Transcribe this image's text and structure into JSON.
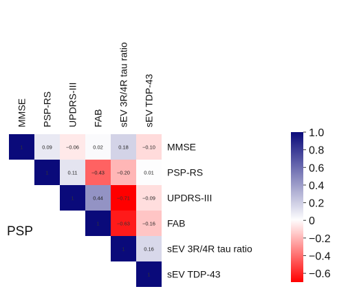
{
  "chart_data": {
    "type": "heatmap",
    "title": "",
    "panel_label": "PSP",
    "variables": [
      "MMSE",
      "PSP-RS",
      "UPDRS-III",
      "FAB",
      "sEV 3R/4R tau ratio",
      "sEV TDP-43"
    ],
    "layout": "upper-triangle",
    "cells": [
      {
        "row": 0,
        "col": 0,
        "value": 1,
        "label": "1"
      },
      {
        "row": 0,
        "col": 1,
        "value": 0.09,
        "label": "0.09"
      },
      {
        "row": 0,
        "col": 2,
        "value": -0.06,
        "label": "−0.06"
      },
      {
        "row": 0,
        "col": 3,
        "value": 0.02,
        "label": "0.02"
      },
      {
        "row": 0,
        "col": 4,
        "value": 0.18,
        "label": "0.18"
      },
      {
        "row": 0,
        "col": 5,
        "value": -0.1,
        "label": "−0.10"
      },
      {
        "row": 1,
        "col": 1,
        "value": 1,
        "label": "1"
      },
      {
        "row": 1,
        "col": 2,
        "value": 0.11,
        "label": "0.11"
      },
      {
        "row": 1,
        "col": 3,
        "value": -0.43,
        "label": "−0.43"
      },
      {
        "row": 1,
        "col": 4,
        "value": -0.2,
        "label": "−0.20"
      },
      {
        "row": 1,
        "col": 5,
        "value": 0.01,
        "label": "0.01"
      },
      {
        "row": 2,
        "col": 2,
        "value": 1,
        "label": "1"
      },
      {
        "row": 2,
        "col": 3,
        "value": 0.44,
        "label": "0.44"
      },
      {
        "row": 2,
        "col": 4,
        "value": -0.71,
        "label": "−0.71"
      },
      {
        "row": 2,
        "col": 5,
        "value": -0.09,
        "label": "−0.09"
      },
      {
        "row": 3,
        "col": 3,
        "value": 1,
        "label": "1"
      },
      {
        "row": 3,
        "col": 4,
        "value": -0.63,
        "label": "−0.63"
      },
      {
        "row": 3,
        "col": 5,
        "value": -0.16,
        "label": "−0.16"
      },
      {
        "row": 4,
        "col": 4,
        "value": 1,
        "label": "1"
      },
      {
        "row": 4,
        "col": 5,
        "value": 0.16,
        "label": "0.16"
      },
      {
        "row": 5,
        "col": 5,
        "value": 1,
        "label": "1"
      }
    ],
    "colorbar": {
      "range": [
        -0.7,
        1.0
      ],
      "ticks": [
        1.0,
        0.8,
        0.6,
        0.4,
        0.2,
        0,
        -0.2,
        -0.4,
        -0.6
      ],
      "tick_labels": [
        "1.0",
        "0.8",
        "0.6",
        "0.4",
        "0.2",
        "0",
        "−0.2",
        "−0.4",
        "−0.6"
      ],
      "colors": {
        "positive": "#0a0a7a",
        "neutral": "#ffffff",
        "negative": "#ff0000"
      }
    }
  }
}
